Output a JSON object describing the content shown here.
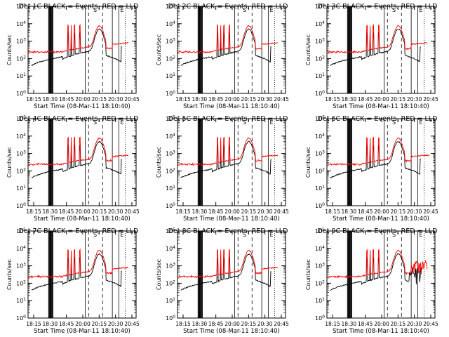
{
  "figure": {
    "background": "#ffffff",
    "axis_color": "#000000"
  },
  "chart_data": [
    {
      "type": "line",
      "panel": 1,
      "title": "Det 1C BLACK = Events, RED = LLD",
      "xlabel": "Start Time (08-Mar-11 18:10:40)",
      "ylabel": "Counts/sec",
      "x_ticks": [
        "18:15",
        "18:30",
        "18:45",
        "20:00",
        "20:15",
        "20:30",
        "20:45"
      ],
      "y_scale": "log",
      "y_ticks": [
        "10^0",
        "10^1",
        "10^2",
        "10^3",
        "10^4",
        "10^5"
      ],
      "ylim": [
        1,
        100000
      ],
      "annotations": [
        "S",
        "E"
      ],
      "series": [
        {
          "name": "Events",
          "color": "#000000"
        },
        {
          "name": "LLD",
          "color": "#ff0000"
        }
      ]
    },
    {
      "type": "line",
      "panel": 2,
      "title": "Det 2C BLACK = Events, RED = LLD",
      "xlabel": "Start Time (08-Mar-11 18:10:40)",
      "ylabel": "Counts/sec",
      "x_ticks": [
        "18:15",
        "18:30",
        "18:45",
        "20:00",
        "20:15",
        "20:30",
        "20:45"
      ],
      "y_scale": "log",
      "y_ticks": [
        "10^0",
        "10^1",
        "10^2",
        "10^3",
        "10^4",
        "10^5"
      ],
      "ylim": [
        1,
        100000
      ],
      "annotations": [
        "S",
        "E"
      ],
      "series": [
        {
          "name": "Events",
          "color": "#000000"
        },
        {
          "name": "LLD",
          "color": "#ff0000"
        }
      ]
    },
    {
      "type": "line",
      "panel": 3,
      "title": "Det 3C BLACK = Events, RED = LLD",
      "xlabel": "Start Time (08-Mar-11 18:10:40)",
      "ylabel": "Counts/sec",
      "x_ticks": [
        "18:15",
        "18:30",
        "18:45",
        "20:00",
        "20:15",
        "20:30",
        "20:45"
      ],
      "y_scale": "log",
      "y_ticks": [
        "10^0",
        "10^1",
        "10^2",
        "10^3",
        "10^4",
        "10^5"
      ],
      "ylim": [
        1,
        100000
      ],
      "annotations": [
        "S",
        "E"
      ],
      "series": [
        {
          "name": "Events",
          "color": "#000000"
        },
        {
          "name": "LLD",
          "color": "#ff0000"
        }
      ]
    },
    {
      "type": "line",
      "panel": 4,
      "title": "Det 4C BLACK = Events, RED = LLD",
      "xlabel": "Start Time (08-Mar-11 18:10:40)",
      "ylabel": "Counts/sec",
      "x_ticks": [
        "18:15",
        "18:30",
        "18:45",
        "20:00",
        "20:15",
        "20:30",
        "20:45"
      ],
      "y_scale": "log",
      "y_ticks": [
        "10^0",
        "10^1",
        "10^2",
        "10^3",
        "10^4",
        "10^5"
      ],
      "ylim": [
        1,
        100000
      ],
      "annotations": [
        "S",
        "E"
      ],
      "series": [
        {
          "name": "Events",
          "color": "#000000"
        },
        {
          "name": "LLD",
          "color": "#ff0000"
        }
      ]
    },
    {
      "type": "line",
      "panel": 5,
      "title": "Det 5C BLACK = Events, RED = LLD",
      "xlabel": "Start Time (08-Mar-11 18:10:40)",
      "ylabel": "Counts/sec",
      "x_ticks": [
        "18:15",
        "18:30",
        "18:45",
        "20:00",
        "20:15",
        "20:30",
        "20:45"
      ],
      "y_scale": "log",
      "y_ticks": [
        "10^0",
        "10^1",
        "10^2",
        "10^3",
        "10^4",
        "10^5"
      ],
      "ylim": [
        1,
        100000
      ],
      "annotations": [
        "S",
        "E"
      ],
      "series": [
        {
          "name": "Events",
          "color": "#000000"
        },
        {
          "name": "LLD",
          "color": "#ff0000"
        }
      ]
    },
    {
      "type": "line",
      "panel": 6,
      "title": "Det 6C BLACK = Events, RED = LLD",
      "xlabel": "Start Time (08-Mar-11 18:10:40)",
      "ylabel": "Counts/sec",
      "x_ticks": [
        "18:15",
        "18:30",
        "18:45",
        "20:00",
        "20:15",
        "20:30",
        "20:45"
      ],
      "y_scale": "log",
      "y_ticks": [
        "10^0",
        "10^1",
        "10^2",
        "10^3",
        "10^4",
        "10^5"
      ],
      "ylim": [
        1,
        100000
      ],
      "annotations": [
        "S",
        "E"
      ],
      "series": [
        {
          "name": "Events",
          "color": "#000000"
        },
        {
          "name": "LLD",
          "color": "#ff0000"
        }
      ]
    },
    {
      "type": "line",
      "panel": 7,
      "title": "Det 7C BLACK = Events, RED = LLD",
      "xlabel": "Start Time (08-Mar-11 18:10:40)",
      "ylabel": "Counts/sec",
      "x_ticks": [
        "18:15",
        "18:30",
        "18:45",
        "20:00",
        "20:15",
        "20:30",
        "20:45"
      ],
      "y_scale": "log",
      "y_ticks": [
        "10^0",
        "10^1",
        "10^2",
        "10^3",
        "10^4",
        "10^5"
      ],
      "ylim": [
        1,
        100000
      ],
      "annotations": [
        "S",
        "E"
      ],
      "series": [
        {
          "name": "Events",
          "color": "#000000"
        },
        {
          "name": "LLD",
          "color": "#ff0000"
        }
      ]
    },
    {
      "type": "line",
      "panel": 8,
      "title": "Det 8C BLACK = Events, RED = LLD",
      "xlabel": "Start Time (08-Mar-11 18:10:40)",
      "ylabel": "Counts/sec",
      "x_ticks": [
        "18:15",
        "18:30",
        "18:45",
        "20:00",
        "20:15",
        "20:30",
        "20:45"
      ],
      "y_scale": "log",
      "y_ticks": [
        "10^0",
        "10^1",
        "10^2",
        "10^3",
        "10^4",
        "10^5"
      ],
      "ylim": [
        1,
        100000
      ],
      "annotations": [
        "S",
        "E"
      ],
      "series": [
        {
          "name": "Events",
          "color": "#000000"
        },
        {
          "name": "LLD",
          "color": "#ff0000"
        }
      ]
    },
    {
      "type": "line",
      "panel": 9,
      "title": "Det 9C BLACK = Events, RED = LLD",
      "xlabel": "Start Time (08-Mar-11 18:10:40)",
      "ylabel": "Counts/sec",
      "x_ticks": [
        "18:15",
        "18:30",
        "18:45",
        "20:00",
        "20:15",
        "20:30",
        "20:45"
      ],
      "y_scale": "log",
      "y_ticks": [
        "10^0",
        "10^1",
        "10^2",
        "10^3",
        "10^4",
        "10^5"
      ],
      "ylim": [
        1,
        100000
      ],
      "annotations": [
        "S",
        "E"
      ],
      "series": [
        {
          "name": "Events",
          "color": "#000000"
        },
        {
          "name": "LLD",
          "color": "#ff0000"
        }
      ]
    }
  ]
}
